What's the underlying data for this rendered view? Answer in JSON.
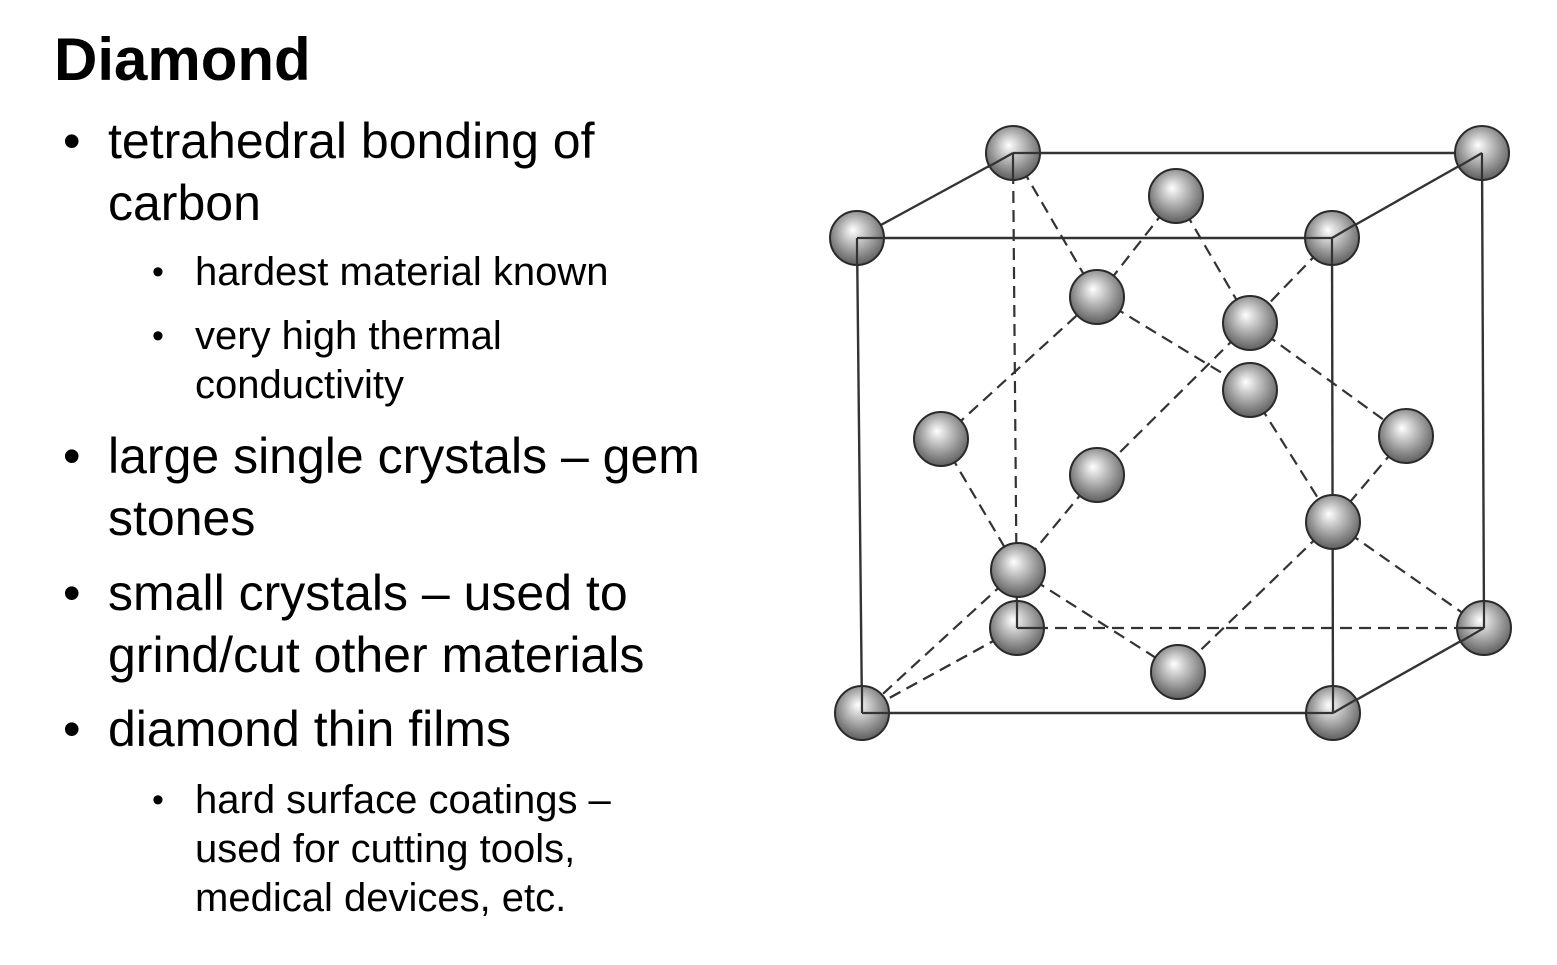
{
  "slide": {
    "title": "Diamond",
    "bullets": [
      {
        "lines": [
          "tetrahedral bonding of",
          "carbon"
        ],
        "sub": [
          {
            "lines": [
              "hardest material known"
            ]
          },
          {
            "lines": [
              "very high thermal",
              "conductivity"
            ]
          }
        ]
      },
      {
        "lines": [
          "large single crystals – gem",
          "stones"
        ]
      },
      {
        "lines": [
          "small crystals – used to",
          "grind/cut other materials"
        ]
      },
      {
        "lines": [
          "diamond thin films"
        ],
        "sub": [
          {
            "lines": [
              "hard surface coatings –",
              "used for cutting tools,",
              "medical devices, etc."
            ]
          }
        ]
      }
    ],
    "bullet_glyph": "•"
  },
  "figure": {
    "subject": "diamond-cubic-unit-cell",
    "atom_color": "#8a8a8a",
    "line_color": "#333333"
  }
}
